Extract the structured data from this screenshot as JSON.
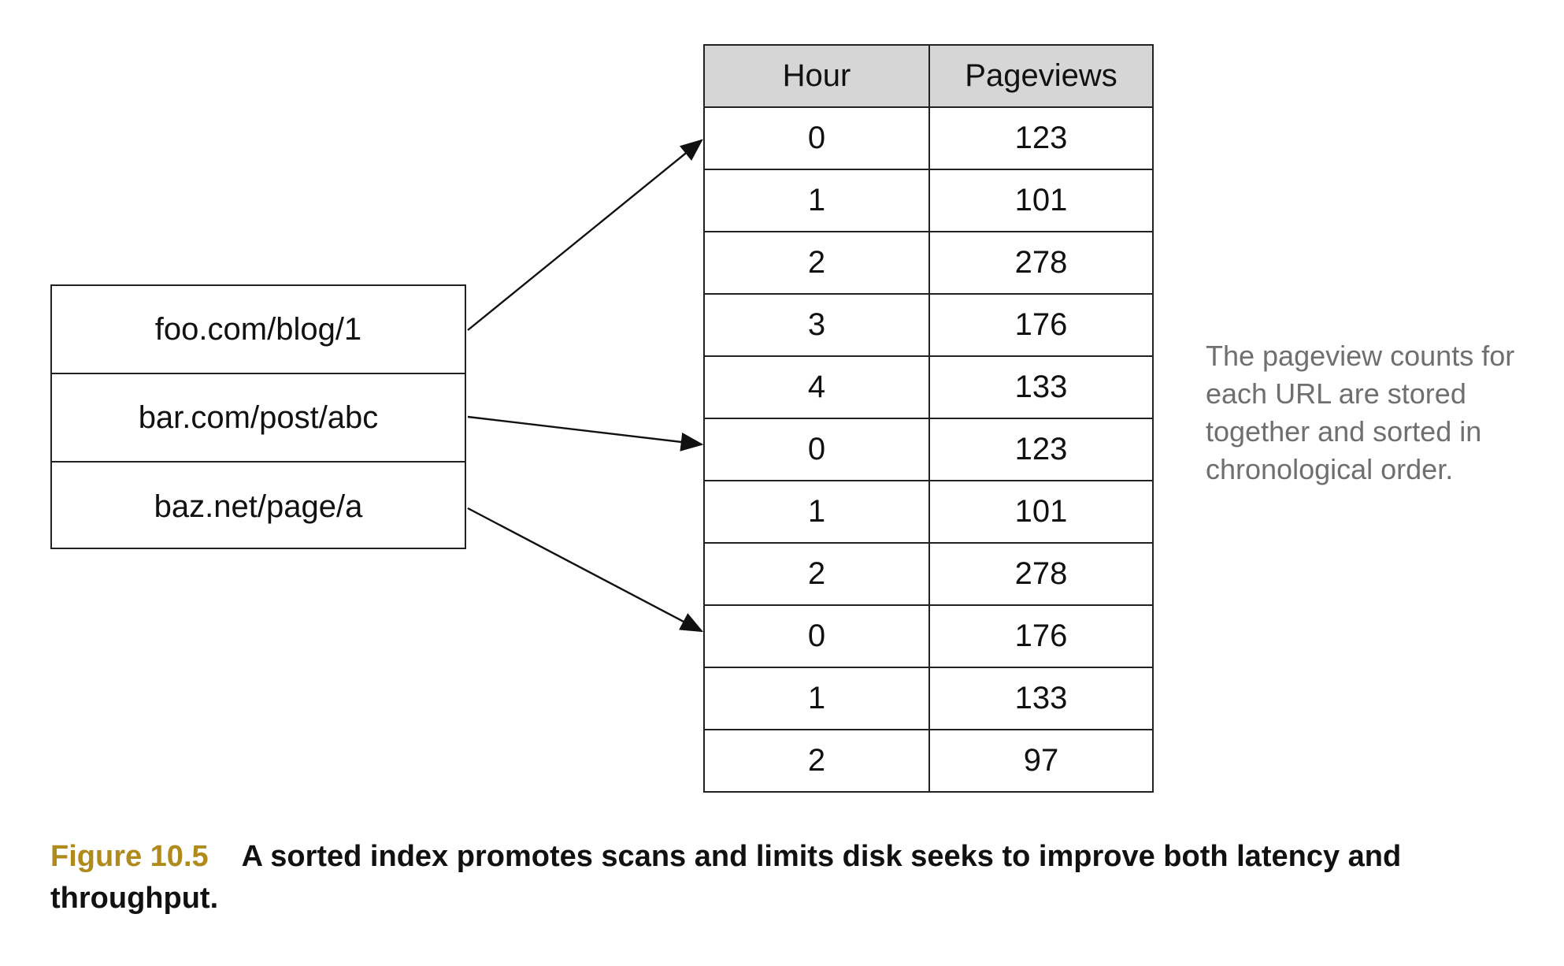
{
  "urls": [
    "foo.com/blog/1",
    "bar.com/post/abc",
    "baz.net/page/a"
  ],
  "table": {
    "headers": [
      "Hour",
      "Pageviews"
    ],
    "rows": [
      [
        "0",
        "123"
      ],
      [
        "1",
        "101"
      ],
      [
        "2",
        "278"
      ],
      [
        "3",
        "176"
      ],
      [
        "4",
        "133"
      ],
      [
        "0",
        "123"
      ],
      [
        "1",
        "101"
      ],
      [
        "2",
        "278"
      ],
      [
        "0",
        "176"
      ],
      [
        "1",
        "133"
      ],
      [
        "2",
        "97"
      ]
    ]
  },
  "arrows": [
    {
      "from_url": 0,
      "to_row": 0
    },
    {
      "from_url": 1,
      "to_row": 5
    },
    {
      "from_url": 2,
      "to_row": 8
    }
  ],
  "note": "The pageview counts for each URL are stored together and sorted in chronological order.",
  "caption": {
    "label": "Figure 10.5",
    "text": "A sorted index promotes scans and limits disk seeks to improve both latency and throughput."
  },
  "colors": {
    "caption_label": "#b08a1a",
    "header_fill": "#d6d6d6",
    "note_text": "#6f6f6f"
  }
}
